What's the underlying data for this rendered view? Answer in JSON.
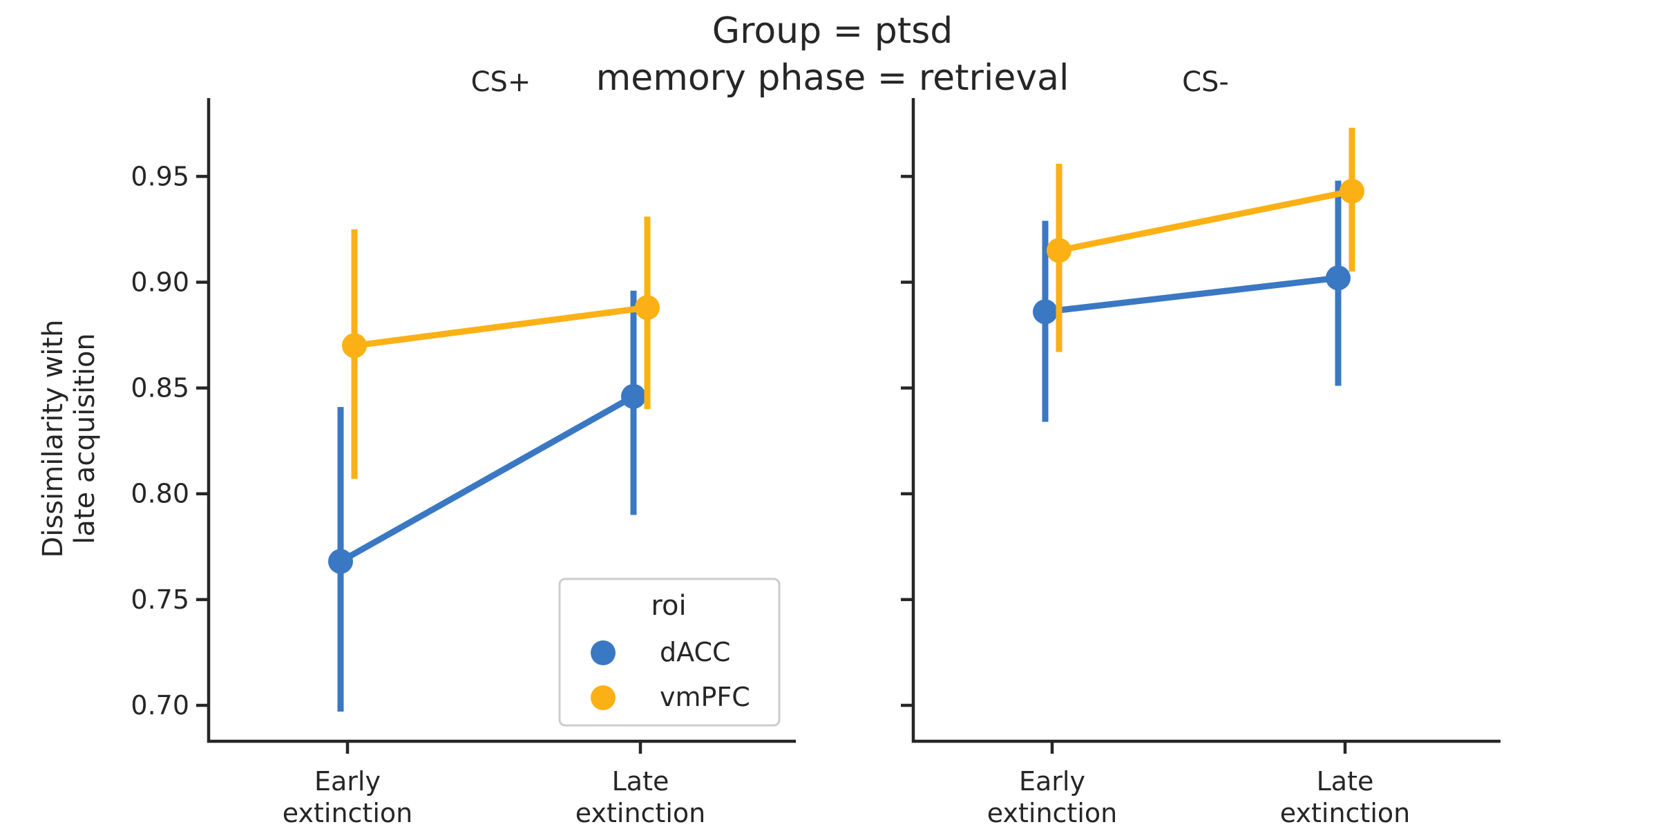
{
  "chart_data": {
    "type": "point",
    "suptitle": "Group = ptsd",
    "subtitle": "memory phase = retrieval",
    "ylabel_lines": [
      "Dissimilarity with",
      "late acquisition"
    ],
    "ylim": [
      0.683,
      0.987
    ],
    "yticks": [
      0.7,
      0.75,
      0.8,
      0.85,
      0.9,
      0.95
    ],
    "ytick_labels": [
      "0.70",
      "0.75",
      "0.80",
      "0.85",
      "0.90",
      "0.95"
    ],
    "categories": [
      [
        "Early",
        "extinction"
      ],
      [
        "Late",
        "extinction"
      ]
    ],
    "legend": {
      "title": "roi",
      "entries": [
        {
          "name": "dACC",
          "color": "#3a78c3"
        },
        {
          "name": "vmPFC",
          "color": "#fbb116"
        }
      ]
    },
    "panels": [
      {
        "title": "CS+",
        "series": [
          {
            "name": "dACC",
            "color": "#3a78c3",
            "values": [
              0.768,
              0.846
            ],
            "ci_low": [
              0.697,
              0.79
            ],
            "ci_high": [
              0.841,
              0.896
            ]
          },
          {
            "name": "vmPFC",
            "color": "#fbb116",
            "values": [
              0.87,
              0.888
            ],
            "ci_low": [
              0.807,
              0.84
            ],
            "ci_high": [
              0.925,
              0.931
            ]
          }
        ]
      },
      {
        "title": "CS-",
        "series": [
          {
            "name": "dACC",
            "color": "#3a78c3",
            "values": [
              0.886,
              0.902
            ],
            "ci_low": [
              0.834,
              0.851
            ],
            "ci_high": [
              0.929,
              0.948
            ]
          },
          {
            "name": "vmPFC",
            "color": "#fbb116",
            "values": [
              0.915,
              0.943
            ],
            "ci_low": [
              0.867,
              0.905
            ],
            "ci_high": [
              0.956,
              0.973
            ]
          }
        ]
      }
    ]
  }
}
